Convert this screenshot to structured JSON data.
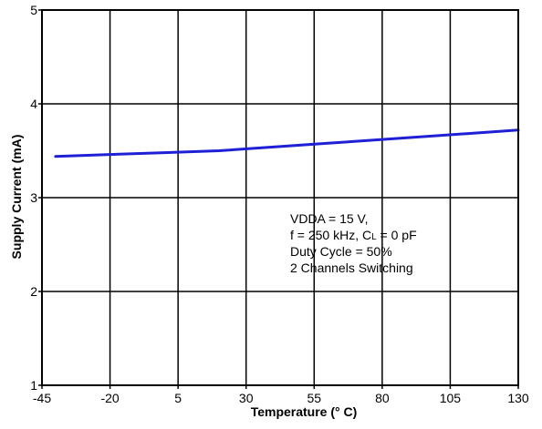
{
  "chart_data": {
    "type": "line",
    "xlabel": "Temperature (° C)",
    "ylabel": "Supply Current (mA)",
    "xlim": [
      -45,
      130
    ],
    "ylim": [
      1,
      5
    ],
    "x_ticks": [
      -45,
      -20,
      5,
      30,
      55,
      80,
      105,
      130
    ],
    "y_ticks": [
      1,
      2,
      3,
      4,
      5
    ],
    "x_tick_labels": [
      "-45",
      "-20",
      "5",
      "30",
      "55",
      "80",
      "105",
      "130"
    ],
    "y_tick_labels": [
      "1",
      "2",
      "3",
      "4",
      "5"
    ],
    "grid": true,
    "series": [
      {
        "color": "#1f1fd6",
        "x": [
          -40,
          -20,
          0,
          20,
          40,
          60,
          80,
          100,
          120,
          130
        ],
        "y": [
          3.44,
          3.46,
          3.48,
          3.5,
          3.54,
          3.58,
          3.62,
          3.66,
          3.7,
          3.72
        ]
      }
    ],
    "annotation": {
      "lines": [
        "VDDA = 15 V,",
        "f = 250 kHz, C",
        "L",
        " = 0  pF",
        "Duty Cycle = 50%",
        "2 Channels Switching"
      ]
    }
  }
}
